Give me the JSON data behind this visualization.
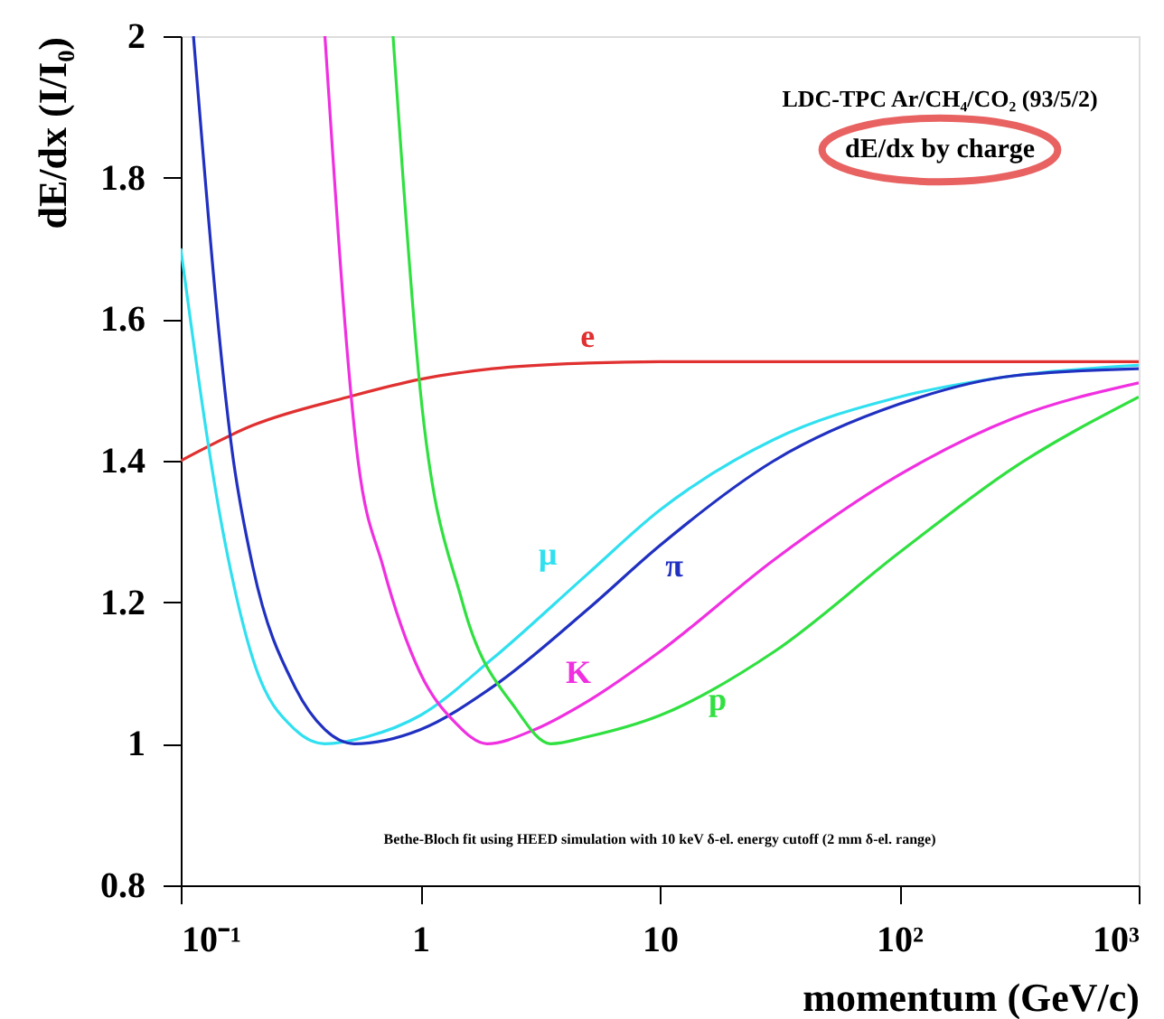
{
  "chart_data": {
    "type": "line",
    "xlabel": "momentum (GeV/c)",
    "ylabel": "dE/dx (I/I₀)",
    "log": "x",
    "grid": false,
    "marker": "none",
    "line_style": "solid",
    "xlim": [
      0.1,
      1000
    ],
    "ylim": [
      0.8,
      2
    ],
    "xticks": [
      {
        "value": 0.1,
        "label": "10⁻¹"
      },
      1,
      10,
      {
        "value": 100,
        "label": "10²"
      },
      {
        "value": 1000,
        "label": "10³"
      }
    ],
    "yticks": [
      0.8,
      1,
      1.2,
      1.4,
      1.6,
      1.8,
      2
    ],
    "annotations": [
      "LDC-TPC Ar/CH₄/CO₂ (93/5/2)",
      "dE/dx by charge",
      "Bethe-Bloch fit using HEED simulation with 10 keV δ-el. energy cutoff (2 mm δ-el. range)"
    ],
    "series": [
      {
        "name": "e",
        "color": "#e03030",
        "x": [
          0.1,
          0.2,
          0.5,
          1,
          2,
          5,
          10,
          30,
          100,
          300,
          1000
        ],
        "values": [
          1.4,
          1.45,
          1.49,
          1.515,
          1.53,
          1.538,
          1.54,
          1.54,
          1.54,
          1.54,
          1.54
        ]
      },
      {
        "name": "μ",
        "color": "#30e0f0",
        "x": [
          0.1,
          0.15,
          0.2,
          0.3,
          0.4,
          0.6,
          1,
          2,
          5,
          10,
          30,
          100,
          300,
          1000
        ],
        "values": [
          1.7,
          1.3,
          1.12,
          1.02,
          1.0,
          1.01,
          1.04,
          1.12,
          1.24,
          1.33,
          1.43,
          1.49,
          1.52,
          1.535
        ]
      },
      {
        "name": "π",
        "color": "#2030c0",
        "x": [
          0.113,
          0.166,
          0.2,
          0.3,
          0.4,
          0.53,
          1,
          2,
          5,
          10,
          30,
          100,
          300,
          1000
        ],
        "values": [
          2.0,
          1.4,
          1.25,
          1.08,
          1.02,
          1.0,
          1.02,
          1.08,
          1.19,
          1.28,
          1.4,
          1.48,
          1.52,
          1.53
        ]
      },
      {
        "name": "K",
        "color": "#f030e0",
        "x": [
          0.4,
          0.55,
          0.7,
          1,
          1.4,
          1.9,
          3,
          5,
          10,
          30,
          100,
          300,
          1000
        ],
        "values": [
          2.0,
          1.4,
          1.25,
          1.1,
          1.03,
          1.0,
          1.02,
          1.06,
          1.13,
          1.26,
          1.38,
          1.46,
          1.51
        ]
      },
      {
        "name": "p",
        "color": "#30e040",
        "x": [
          0.77,
          1,
          1.5,
          2.5,
          3.5,
          5,
          10,
          30,
          100,
          300,
          1000
        ],
        "values": [
          2.0,
          1.5,
          1.2,
          1.05,
          1.0,
          1.01,
          1.04,
          1.13,
          1.27,
          1.39,
          1.49
        ]
      }
    ]
  }
}
